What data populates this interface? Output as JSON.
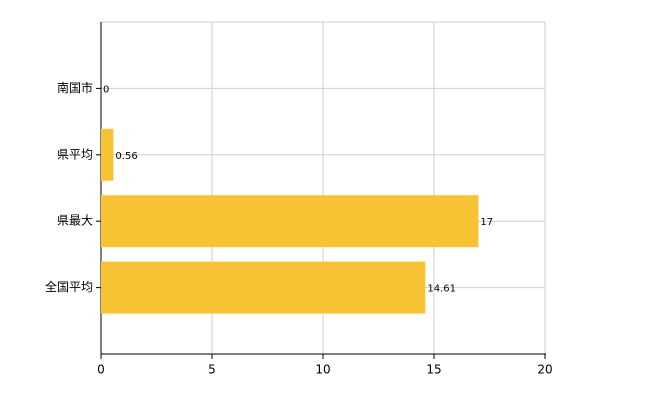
{
  "chart_data": {
    "type": "bar",
    "orientation": "horizontal",
    "categories": [
      "南国市",
      "県平均",
      "県最大",
      "全国平均"
    ],
    "values": [
      0,
      0.56,
      17,
      14.61
    ],
    "color": "#f7c334",
    "xlim": [
      0,
      20
    ],
    "xticks": [
      0,
      5,
      10,
      15,
      20
    ],
    "grid": true
  }
}
